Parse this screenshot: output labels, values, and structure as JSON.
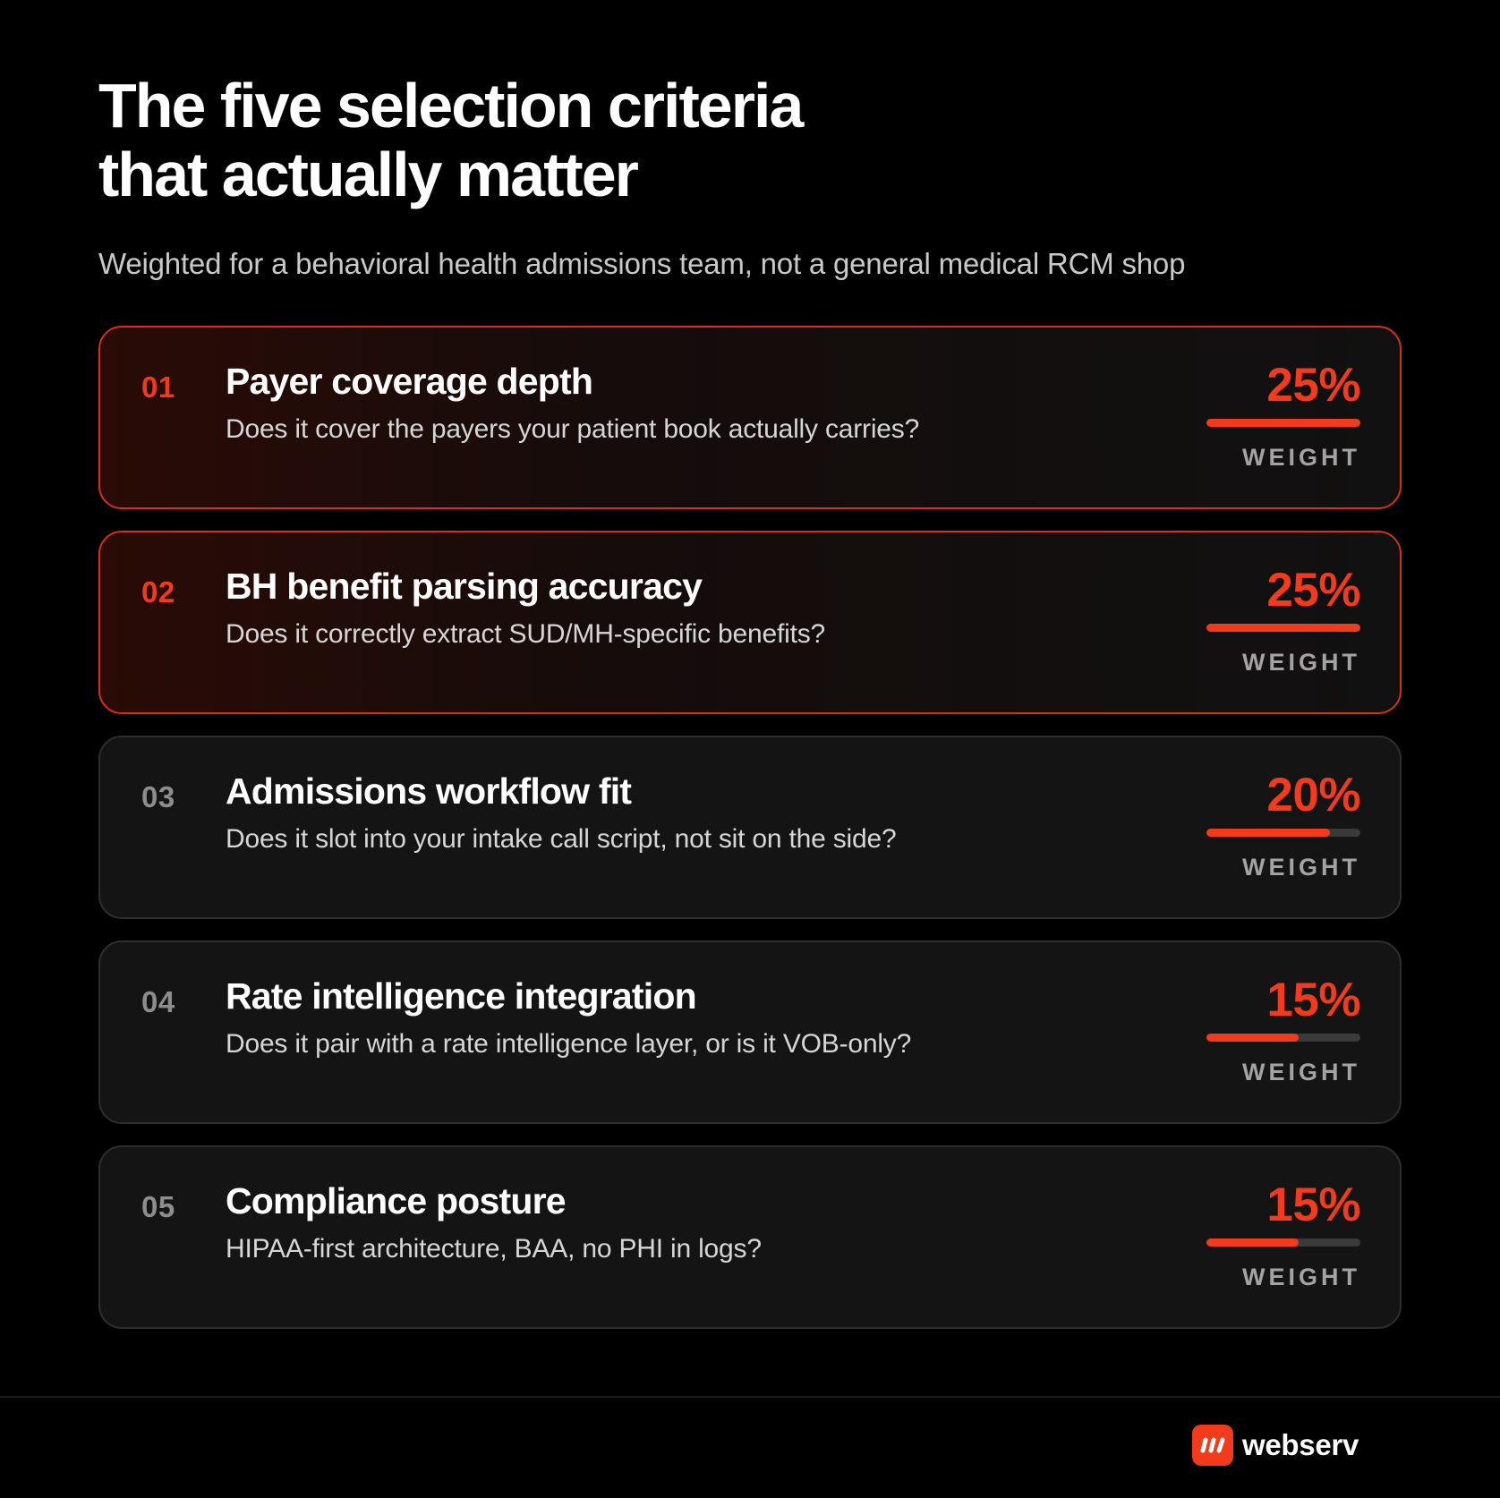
{
  "header": {
    "title_line1": "The five selection criteria",
    "title_line2": "that actually matter",
    "subtitle": "Weighted for a behavioral health admissions team, not a general medical RCM shop"
  },
  "accent_color": "#f23b1c",
  "criteria": [
    {
      "number": "01",
      "title": "Payer coverage depth",
      "description": "Does it cover the payers your patient book actually carries?",
      "weight": "25%",
      "weight_value": 0.25,
      "bar_fill_fraction": 1.0,
      "weight_label": "WEIGHT",
      "highlighted": true
    },
    {
      "number": "02",
      "title": "BH benefit parsing accuracy",
      "description": "Does it correctly extract SUD/MH-specific benefits?",
      "weight": "25%",
      "weight_value": 0.25,
      "bar_fill_fraction": 1.0,
      "weight_label": "WEIGHT",
      "highlighted": true
    },
    {
      "number": "03",
      "title": "Admissions workflow fit",
      "description": "Does it slot into your intake call script, not sit on the side?",
      "weight": "20%",
      "weight_value": 0.2,
      "bar_fill_fraction": 0.8,
      "weight_label": "WEIGHT",
      "highlighted": false
    },
    {
      "number": "04",
      "title": "Rate intelligence integration",
      "description": "Does it pair with a rate intelligence layer, or is it VOB-only?",
      "weight": "15%",
      "weight_value": 0.15,
      "bar_fill_fraction": 0.6,
      "weight_label": "WEIGHT",
      "highlighted": false
    },
    {
      "number": "05",
      "title": "Compliance posture",
      "description": "HIPAA-first architecture, BAA, no PHI in logs?",
      "weight": "15%",
      "weight_value": 0.15,
      "bar_fill_fraction": 0.6,
      "weight_label": "WEIGHT",
      "highlighted": false
    }
  ],
  "footer": {
    "brand_name": "webserv",
    "logo_icon": "webserv-logo-icon"
  }
}
